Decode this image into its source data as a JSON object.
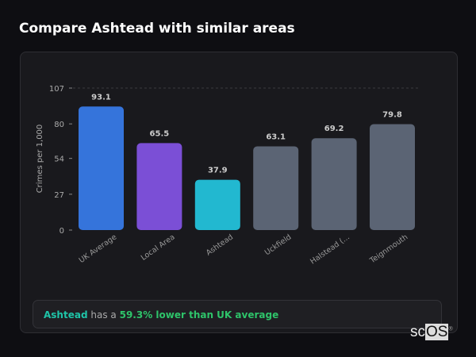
{
  "title": "Compare Ashtead with similar areas",
  "chart_data": {
    "type": "bar",
    "categories": [
      "UK Average",
      "Local Area",
      "Ashtead",
      "Uckfield",
      "Halstead (...",
      "Teignmouth"
    ],
    "values": [
      93.1,
      65.5,
      37.9,
      63.1,
      69.2,
      79.8
    ],
    "value_labels": [
      "93.1",
      "65.5",
      "37.9",
      "63.1",
      "69.2",
      "79.8"
    ],
    "colors": [
      "#3574db",
      "#7b4fd6",
      "#22b8d0",
      "#5b6474",
      "#5b6474",
      "#5b6474"
    ],
    "ylabel": "Crimes per 1,000",
    "yticks": [
      0,
      27,
      54,
      80,
      107
    ],
    "ylim": [
      0,
      107
    ],
    "grid": "top dashed line only"
  },
  "insight": {
    "area": "Ashtead",
    "middle": "has a",
    "stat": "59.3% lower than UK average"
  },
  "logo": {
    "text_a": "sc",
    "text_b": "OS",
    "mark": "®"
  }
}
